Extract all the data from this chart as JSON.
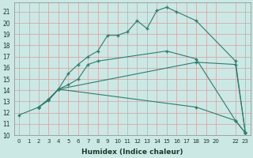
{
  "xlabel": "Humidex (Indice chaleur)",
  "bg_color": "#cce8e4",
  "grid_color": "#c0d8d4",
  "line_color": "#2d7d6e",
  "xlim": [
    -0.5,
    23.5
  ],
  "ylim": [
    10,
    21.8
  ],
  "xticks": [
    0,
    1,
    2,
    3,
    4,
    5,
    6,
    7,
    8,
    9,
    10,
    11,
    12,
    13,
    14,
    15,
    16,
    17,
    18,
    19,
    20,
    22,
    23
  ],
  "xtick_labels": [
    "0",
    "1",
    "2",
    "3",
    "4",
    "5",
    "6",
    "7",
    "8",
    "9",
    "10",
    "11",
    "12",
    "13",
    "14",
    "15",
    "16",
    "17",
    "18",
    "19",
    "20",
    "22",
    "23"
  ],
  "yticks": [
    10,
    11,
    12,
    13,
    14,
    15,
    16,
    17,
    18,
    19,
    20,
    21
  ],
  "series": [
    {
      "x": [
        0,
        2,
        3,
        4,
        5,
        6,
        7,
        8,
        9,
        10,
        11,
        12,
        13,
        14,
        15,
        16,
        18,
        22,
        23
      ],
      "y": [
        11.8,
        12.5,
        13.1,
        14.1,
        15.5,
        16.3,
        17.0,
        17.5,
        18.9,
        18.9,
        19.2,
        20.2,
        19.5,
        21.1,
        21.4,
        21.0,
        20.2,
        16.6,
        10.2
      ]
    },
    {
      "x": [
        2,
        3,
        4,
        5,
        6,
        7,
        8,
        15,
        18,
        22,
        23
      ],
      "y": [
        12.5,
        13.2,
        14.1,
        14.5,
        15.0,
        16.3,
        16.6,
        17.5,
        16.8,
        11.3,
        10.2
      ]
    },
    {
      "x": [
        2,
        3,
        4,
        18,
        22,
        23
      ],
      "y": [
        12.5,
        13.2,
        14.1,
        16.5,
        16.3,
        10.2
      ]
    },
    {
      "x": [
        2,
        3,
        4,
        18,
        22,
        23
      ],
      "y": [
        12.5,
        13.2,
        14.1,
        12.5,
        11.3,
        10.2
      ]
    }
  ]
}
